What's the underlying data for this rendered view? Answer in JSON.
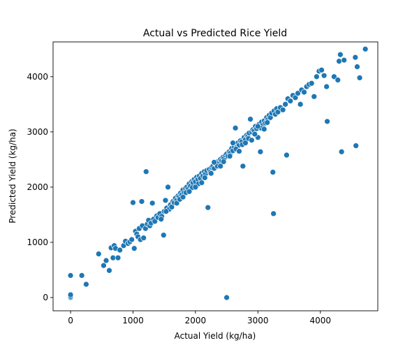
{
  "chart_data": {
    "type": "scatter",
    "title": "Actual vs Predicted Rice Yield",
    "xlabel": "Actual Yield (kg/ha)",
    "ylabel": "Predicted Yield (kg/ha)",
    "xlim": [
      -280,
      4920
    ],
    "ylim": [
      -240,
      4630
    ],
    "xticks": [
      0,
      1000,
      2000,
      3000,
      4000
    ],
    "yticks": [
      0,
      1000,
      2000,
      3000,
      4000
    ],
    "grid": false,
    "marker_color": "#1f77b4",
    "series": [
      {
        "points": [
          [
            0,
            0
          ],
          [
            0,
            20
          ],
          [
            0,
            50
          ],
          [
            0,
            400
          ],
          [
            180,
            400
          ],
          [
            250,
            240
          ],
          [
            450,
            790
          ],
          [
            530,
            580
          ],
          [
            570,
            670
          ],
          [
            620,
            490
          ],
          [
            650,
            900
          ],
          [
            680,
            720
          ],
          [
            700,
            940
          ],
          [
            720,
            890
          ],
          [
            760,
            720
          ],
          [
            790,
            860
          ],
          [
            850,
            940
          ],
          [
            880,
            1020
          ],
          [
            920,
            980
          ],
          [
            950,
            1010
          ],
          [
            980,
            1050
          ],
          [
            1000,
            1720
          ],
          [
            1020,
            890
          ],
          [
            1040,
            1200
          ],
          [
            1060,
            1150
          ],
          [
            1080,
            1100
          ],
          [
            1100,
            1250
          ],
          [
            1120,
            1050
          ],
          [
            1140,
            1740
          ],
          [
            1150,
            1300
          ],
          [
            1170,
            1080
          ],
          [
            1200,
            1250
          ],
          [
            1210,
            2280
          ],
          [
            1230,
            1330
          ],
          [
            1250,
            1400
          ],
          [
            1270,
            1300
          ],
          [
            1290,
            1350
          ],
          [
            1310,
            1710
          ],
          [
            1330,
            1420
          ],
          [
            1350,
            1380
          ],
          [
            1380,
            1480
          ],
          [
            1400,
            1450
          ],
          [
            1430,
            1520
          ],
          [
            1460,
            1470
          ],
          [
            1490,
            1130
          ],
          [
            1500,
            1560
          ],
          [
            1520,
            1760
          ],
          [
            1540,
            1620
          ],
          [
            1560,
            2000
          ],
          [
            1580,
            1600
          ],
          [
            1600,
            1680
          ],
          [
            1620,
            1640
          ],
          [
            1640,
            1740
          ],
          [
            1660,
            1720
          ],
          [
            1680,
            1800
          ],
          [
            1700,
            1760
          ],
          [
            1720,
            1840
          ],
          [
            1740,
            1820
          ],
          [
            1760,
            1890
          ],
          [
            1780,
            1860
          ],
          [
            1800,
            1950
          ],
          [
            1820,
            1900
          ],
          [
            1840,
            1980
          ],
          [
            1860,
            2000
          ],
          [
            1880,
            1960
          ],
          [
            1900,
            2060
          ],
          [
            1920,
            2020
          ],
          [
            1940,
            2100
          ],
          [
            1960,
            2080
          ],
          [
            1980,
            2140
          ],
          [
            2000,
            2100
          ],
          [
            2020,
            2180
          ],
          [
            2040,
            2140
          ],
          [
            2060,
            2200
          ],
          [
            2080,
            2160
          ],
          [
            2100,
            2250
          ],
          [
            2120,
            2200
          ],
          [
            2140,
            2280
          ],
          [
            2160,
            2240
          ],
          [
            2180,
            2300
          ],
          [
            2200,
            1630
          ],
          [
            2220,
            2320
          ],
          [
            2240,
            2280
          ],
          [
            2260,
            2360
          ],
          [
            2280,
            2380
          ],
          [
            2300,
            2340
          ],
          [
            2320,
            2420
          ],
          [
            2340,
            2400
          ],
          [
            2360,
            2460
          ],
          [
            2380,
            2440
          ],
          [
            2400,
            2500
          ],
          [
            2420,
            2480
          ],
          [
            2440,
            2540
          ],
          [
            2460,
            2520
          ],
          [
            2480,
            2580
          ],
          [
            2500,
            2600
          ],
          [
            2500,
            0
          ],
          [
            2520,
            2560
          ],
          [
            2540,
            2640
          ],
          [
            2560,
            2620
          ],
          [
            2580,
            2700
          ],
          [
            2600,
            2660
          ],
          [
            2620,
            2740
          ],
          [
            2640,
            3070
          ],
          [
            2660,
            2720
          ],
          [
            2680,
            2800
          ],
          [
            2700,
            2760
          ],
          [
            2720,
            2840
          ],
          [
            2740,
            2820
          ],
          [
            2760,
            2380
          ],
          [
            2780,
            2900
          ],
          [
            2800,
            2860
          ],
          [
            2820,
            2940
          ],
          [
            2840,
            2920
          ],
          [
            2860,
            2980
          ],
          [
            2880,
            3230
          ],
          [
            2900,
            3000
          ],
          [
            2920,
            3040
          ],
          [
            2940,
            3020
          ],
          [
            2960,
            3100
          ],
          [
            2980,
            3060
          ],
          [
            3000,
            2900
          ],
          [
            3020,
            3140
          ],
          [
            3040,
            2640
          ],
          [
            3060,
            3180
          ],
          [
            3080,
            3120
          ],
          [
            3100,
            3200
          ],
          [
            3120,
            3160
          ],
          [
            3140,
            3260
          ],
          [
            3160,
            3220
          ],
          [
            3180,
            3300
          ],
          [
            3200,
            3260
          ],
          [
            3220,
            3340
          ],
          [
            3240,
            2270
          ],
          [
            3250,
            1520
          ],
          [
            3260,
            3380
          ],
          [
            3280,
            3320
          ],
          [
            3300,
            3420
          ],
          [
            3320,
            3360
          ],
          [
            3360,
            3440
          ],
          [
            3400,
            3400
          ],
          [
            3440,
            3500
          ],
          [
            3460,
            2580
          ],
          [
            3480,
            3600
          ],
          [
            3520,
            3560
          ],
          [
            3560,
            3660
          ],
          [
            3600,
            3620
          ],
          [
            3640,
            3700
          ],
          [
            3680,
            3500
          ],
          [
            3700,
            3760
          ],
          [
            3740,
            3720
          ],
          [
            3780,
            3820
          ],
          [
            3820,
            3860
          ],
          [
            3860,
            3880
          ],
          [
            3900,
            3640
          ],
          [
            3940,
            4000
          ],
          [
            3980,
            4100
          ],
          [
            4020,
            4120
          ],
          [
            4060,
            4020
          ],
          [
            4100,
            3820
          ],
          [
            4110,
            3190
          ],
          [
            4220,
            4000
          ],
          [
            4280,
            3940
          ],
          [
            4300,
            4280
          ],
          [
            4320,
            4400
          ],
          [
            4340,
            2640
          ],
          [
            4380,
            4300
          ],
          [
            4560,
            4350
          ],
          [
            4570,
            2750
          ],
          [
            4590,
            4180
          ],
          [
            4630,
            3980
          ],
          [
            4720,
            4500
          ],
          [
            1450,
            1420
          ],
          [
            1530,
            1560
          ],
          [
            1700,
            1710
          ],
          [
            1750,
            1780
          ],
          [
            1850,
            1900
          ],
          [
            1950,
            1990
          ],
          [
            2050,
            2060
          ],
          [
            2150,
            2170
          ],
          [
            2250,
            2250
          ],
          [
            2350,
            2380
          ],
          [
            2450,
            2460
          ],
          [
            2550,
            2560
          ],
          [
            2650,
            2690
          ],
          [
            2750,
            2770
          ],
          [
            2850,
            2880
          ],
          [
            2950,
            2960
          ],
          [
            3050,
            3070
          ],
          [
            3150,
            3170
          ],
          [
            2300,
            2450
          ],
          [
            2400,
            2380
          ],
          [
            2600,
            2800
          ],
          [
            2700,
            2650
          ],
          [
            2800,
            2800
          ],
          [
            2900,
            2850
          ],
          [
            3000,
            3100
          ],
          [
            3100,
            3050
          ],
          [
            1900,
            1920
          ],
          [
            2000,
            2000
          ],
          [
            2100,
            2080
          ],
          [
            1800,
            1820
          ]
        ]
      }
    ]
  }
}
